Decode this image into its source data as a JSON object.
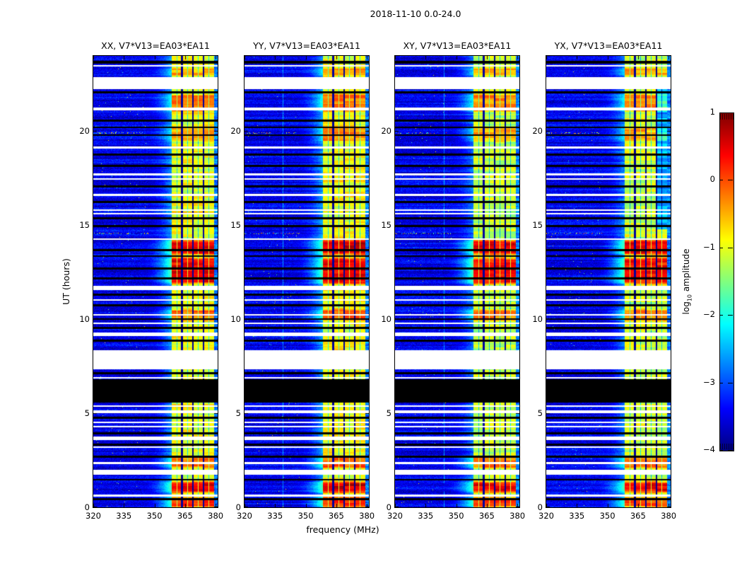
{
  "chart_data": {
    "type": "heatmap",
    "title": "2018-11-10 0.0-24.0",
    "xlabel": "frequency (MHz)",
    "ylabel": "UT (hours)",
    "x_range_mhz": [
      320,
      381
    ],
    "x_ticks_mhz": [
      320,
      335,
      350,
      365,
      380
    ],
    "y_range_hours": [
      0,
      24
    ],
    "y_ticks_hours": [
      0,
      5,
      10,
      15,
      20
    ],
    "colorscale": {
      "colormap": "jet",
      "min": -4,
      "max": 1,
      "label_prefix": "log",
      "label_sub": "10",
      "label_suffix": " amplitude",
      "ticks": [
        {
          "v": 1,
          "label": "1"
        },
        {
          "v": 0,
          "label": "0"
        },
        {
          "v": -1,
          "label": "−1"
        },
        {
          "v": -2,
          "label": "−2"
        },
        {
          "v": -3,
          "label": "−3"
        },
        {
          "v": -4,
          "label": "−4"
        }
      ]
    },
    "panels": [
      {
        "pol": "XX",
        "title": "XX, V7*V13=EA03*EA11",
        "seed": 11,
        "hot_offset": 0.0,
        "base_offset": 0.0
      },
      {
        "pol": "YY",
        "title": "YY, V7*V13=EA03*EA11",
        "seed": 23,
        "hot_offset": 0.1,
        "base_offset": 0.06,
        "faint_line_mhz": 339
      },
      {
        "pol": "XY",
        "title": "XY, V7*V13=EA03*EA11",
        "seed": 37,
        "hot_offset": -0.05,
        "base_offset": -0.22,
        "faint_line_mhz": 344
      },
      {
        "pol": "YX",
        "title": "YX, V7*V13=EA03*EA11",
        "seed": 49,
        "hot_offset": -0.05,
        "base_offset": -0.18,
        "weak_block": {
          "block": 3,
          "ut": [
            14.8,
            22.6
          ],
          "delta": -1.4
        }
      }
    ],
    "features": {
      "background_log_amp": -3.45,
      "rfi_band_mhz": [
        358.3,
        379.2
      ],
      "rfi_baseline_log_amp": -0.95,
      "rfi_block_edges_mhz": [
        363.5,
        368.7,
        373.9
      ],
      "rfi_block_center_lines_mhz": [
        361.0,
        366.2,
        371.4,
        376.6
      ],
      "transition_start_mhz": 350,
      "black_band_ut": [
        5.55,
        6.79
      ],
      "white_gap_ut": [
        7.35,
        8.36
      ],
      "hot_intervals_ut": [
        [
          0.0,
          0.55,
          0.1
        ],
        [
          0.8,
          1.35,
          0.45
        ],
        [
          2.05,
          2.75,
          -0.2
        ],
        [
          9.9,
          10.55,
          -0.15
        ],
        [
          11.9,
          13.25,
          0.4
        ],
        [
          13.45,
          14.2,
          0.5
        ],
        [
          19.4,
          20.3,
          -0.45
        ],
        [
          21.0,
          22.0,
          -0.25
        ],
        [
          22.9,
          23.4,
          -0.5
        ]
      ],
      "white_stripes_ut": [
        [
          23.43,
          23.51
        ],
        [
          22.24,
          22.87
        ],
        [
          21.11,
          21.26
        ],
        [
          19.08,
          19.2
        ],
        [
          17.66,
          17.74
        ],
        [
          17.43,
          17.51
        ],
        [
          16.54,
          16.65
        ],
        [
          15.76,
          15.83
        ],
        [
          15.57,
          15.64
        ],
        [
          14.21,
          14.29
        ],
        [
          11.55,
          11.77
        ],
        [
          11.0,
          11.07
        ],
        [
          10.2,
          10.27
        ],
        [
          9.75,
          9.82
        ],
        [
          9.11,
          9.3
        ],
        [
          6.86,
          6.94
        ],
        [
          5.33,
          5.4
        ],
        [
          5.02,
          5.14
        ],
        [
          4.48,
          4.55
        ],
        [
          4.24,
          4.31
        ],
        [
          3.56,
          3.75
        ],
        [
          3.17,
          3.24
        ],
        [
          2.29,
          2.4
        ],
        [
          1.72,
          1.99
        ],
        [
          0.56,
          0.67
        ]
      ],
      "black_stripes_ut": [
        [
          23.6,
          23.74
        ],
        [
          22.01,
          22.12
        ],
        [
          20.51,
          20.62
        ],
        [
          20.17,
          20.25
        ],
        [
          19.76,
          19.83
        ],
        [
          18.71,
          18.82
        ],
        [
          18.11,
          18.22
        ],
        [
          16.99,
          17.1
        ],
        [
          16.16,
          16.28
        ],
        [
          15.3,
          15.41
        ],
        [
          14.89,
          15.0
        ],
        [
          13.61,
          13.72
        ],
        [
          13.31,
          13.38
        ],
        [
          12.64,
          12.75
        ],
        [
          12.11,
          12.22
        ],
        [
          11.25,
          11.36
        ],
        [
          10.69,
          10.8
        ],
        [
          9.97,
          10.05
        ],
        [
          9.49,
          9.6
        ],
        [
          8.81,
          8.92
        ],
        [
          7.09,
          7.2
        ],
        [
          4.69,
          4.8
        ],
        [
          3.86,
          3.97
        ],
        [
          3.26,
          3.37
        ],
        [
          2.62,
          2.74
        ],
        [
          1.76,
          1.87
        ],
        [
          1.42,
          1.5
        ],
        [
          0.37,
          0.49
        ]
      ],
      "dotty_rows_ut": [
        19.9,
        14.55
      ]
    }
  }
}
